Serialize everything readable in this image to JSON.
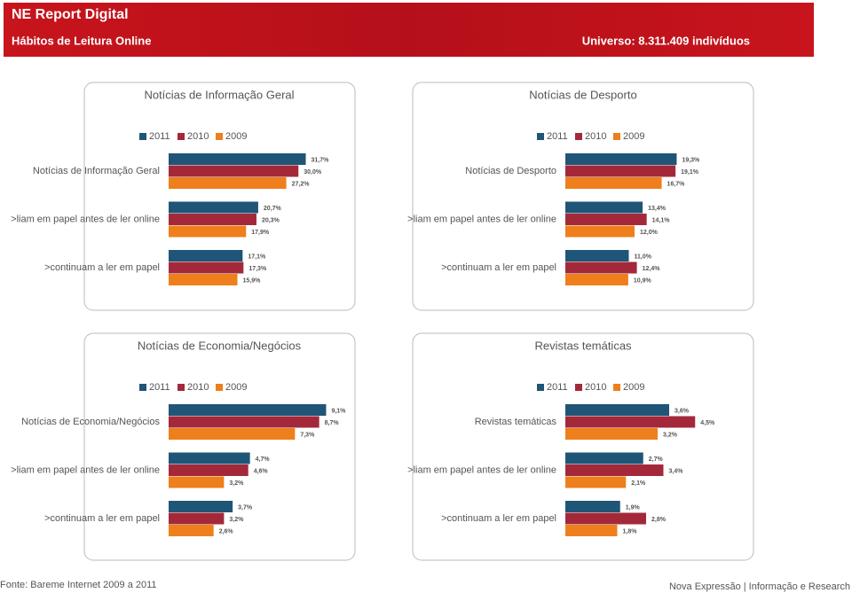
{
  "header": {
    "title": "NE Report Digital",
    "subtitle": "Hábitos de Leitura Online",
    "universe": "Universo: 8.311.409 indivíduos"
  },
  "footer": {
    "source": "Fonte: Bareme Internet 2009 a 2011",
    "credit": "Nova Expressão | Informação e Research"
  },
  "chart_data": [
    {
      "type": "hbar",
      "title": "Notícias de Informação Geral",
      "categories": [
        "Notícias de Informação Geral",
        ">liam em papel antes de ler online",
        ">continuam a ler em papel"
      ],
      "xlim": [
        0,
        40
      ],
      "series": [
        {
          "name": "2011",
          "color": "#1f5577",
          "values": [
            31.7,
            20.7,
            17.1
          ],
          "value_labels": [
            "31,7%",
            "20,7%",
            "17,1%"
          ]
        },
        {
          "name": "2010",
          "color": "#a3293a",
          "values": [
            30.0,
            20.3,
            17.3
          ],
          "value_labels": [
            "30,0%",
            "20,3%",
            "17,3%"
          ]
        },
        {
          "name": "2009",
          "color": "#ee7f1c",
          "values": [
            27.2,
            17.9,
            15.9
          ],
          "value_labels": [
            "27,2%",
            "17,9%",
            "15,9%"
          ]
        }
      ]
    },
    {
      "type": "hbar",
      "title": "Notícias de Desporto",
      "categories": [
        "Notícias de Desporto",
        ">liam em papel antes de ler online",
        ">continuam a ler em papel"
      ],
      "xlim": [
        0,
        30
      ],
      "series": [
        {
          "name": "2011",
          "color": "#1f5577",
          "values": [
            19.3,
            13.4,
            11.0
          ],
          "value_labels": [
            "19,3%",
            "13,4%",
            "11,0%"
          ]
        },
        {
          "name": "2010",
          "color": "#a3293a",
          "values": [
            19.1,
            14.1,
            12.4
          ],
          "value_labels": [
            "19,1%",
            "14,1%",
            "12,4%"
          ]
        },
        {
          "name": "2009",
          "color": "#ee7f1c",
          "values": [
            16.7,
            12.0,
            10.9
          ],
          "value_labels": [
            "16,7%",
            "12,0%",
            "10,9%"
          ]
        }
      ]
    },
    {
      "type": "hbar",
      "title": "Notícias de Economia/Negócios",
      "categories": [
        "Notícias de Economia/Negócios",
        ">liam em papel antes de ler online",
        ">continuam a ler em papel"
      ],
      "xlim": [
        0,
        10
      ],
      "series": [
        {
          "name": "2011",
          "color": "#1f5577",
          "values": [
            9.1,
            4.7,
            3.7
          ],
          "value_labels": [
            "9,1%",
            "4,7%",
            "3,7%"
          ]
        },
        {
          "name": "2010",
          "color": "#a3293a",
          "values": [
            8.7,
            4.6,
            3.2
          ],
          "value_labels": [
            "8,7%",
            "4,6%",
            "3,2%"
          ]
        },
        {
          "name": "2009",
          "color": "#ee7f1c",
          "values": [
            7.3,
            3.2,
            2.6
          ],
          "value_labels": [
            "7,3%",
            "3,2%",
            "2,6%"
          ]
        }
      ]
    },
    {
      "type": "hbar",
      "title": "Revistas temáticas",
      "categories": [
        "Revistas temáticas",
        ">liam em papel antes de ler online",
        ">continuam a ler em papel"
      ],
      "xlim": [
        0,
        6
      ],
      "series": [
        {
          "name": "2011",
          "color": "#1f5577",
          "values": [
            3.6,
            2.7,
            1.9
          ],
          "value_labels": [
            "3,6%",
            "2,7%",
            "1,9%"
          ]
        },
        {
          "name": "2010",
          "color": "#a3293a",
          "values": [
            4.5,
            3.4,
            2.8
          ],
          "value_labels": [
            "4,5%",
            "3,4%",
            "2,8%"
          ]
        },
        {
          "name": "2009",
          "color": "#ee7f1c",
          "values": [
            3.2,
            2.1,
            1.8
          ],
          "value_labels": [
            "3,2%",
            "2,1%",
            "1,8%"
          ]
        }
      ]
    }
  ]
}
